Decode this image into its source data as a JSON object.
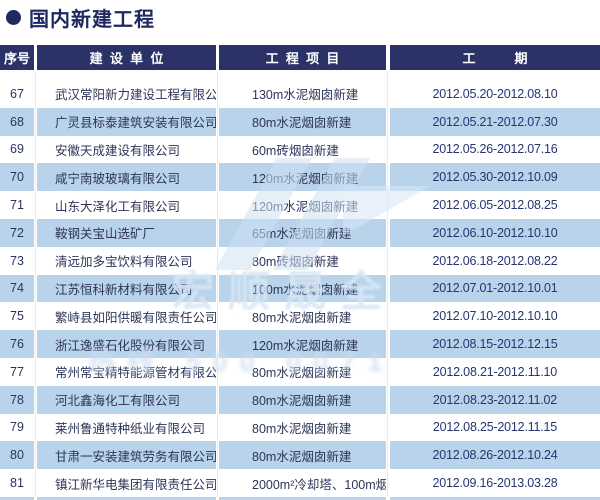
{
  "page": {
    "title": "国内新建工程"
  },
  "table": {
    "columns": [
      "序号",
      "建  设  单  位",
      "工  程  项  目",
      "工　　　期"
    ],
    "rows": [
      {
        "no": "67",
        "company": "武汉常阳新力建设工程有限公司",
        "project": "130m水泥烟囱新建",
        "period": "2012.05.20-2012.08.10"
      },
      {
        "no": "68",
        "company": "广灵县标泰建筑安装有限公司",
        "project": "80m水泥烟囱新建",
        "period": "2012.05.21-2012.07.30"
      },
      {
        "no": "69",
        "company": "安徽天成建设有限公司",
        "project": "60m砖烟囱新建",
        "period": "2012.05.26-2012.07.16"
      },
      {
        "no": "70",
        "company": "咸宁南玻玻璃有限公司",
        "project": "120m水泥烟囱新建",
        "period": "2012.05.30-2012.10.09"
      },
      {
        "no": "71",
        "company": "山东大泽化工有限公司",
        "project": "120m水泥烟囱新建",
        "period": "2012.06.05-2012.08.25"
      },
      {
        "no": "72",
        "company": "鞍钢关宝山选矿厂",
        "project": "65m水泥烟囱新建",
        "period": "2012.06.10-2012.10.10"
      },
      {
        "no": "73",
        "company": "清远加多宝饮料有限公司",
        "project": "80m砖烟囱新建",
        "period": "2012.06.18-2012.08.22"
      },
      {
        "no": "74",
        "company": "江苏恒科新材料有限公司",
        "project": "100m水泥烟囱新建",
        "period": "2012.07.01-2012.10.01"
      },
      {
        "no": "75",
        "company": "繁峙县如阳供暖有限责任公司",
        "project": "80m水泥烟囱新建",
        "period": "2012.07.10-2012.10.10"
      },
      {
        "no": "76",
        "company": "浙江逸盛石化股份有限公司",
        "project": "120m水泥烟囱新建",
        "period": "2012.08.15-2012.12.15"
      },
      {
        "no": "77",
        "company": "常州常宝精特能源管材有限公司",
        "project": "80m水泥烟囱新建",
        "period": "2012.08.21-2012.11.10"
      },
      {
        "no": "78",
        "company": "河北鑫海化工有限公司",
        "project": "80m水泥烟囱新建",
        "period": "2012.08.23-2012.11.02"
      },
      {
        "no": "79",
        "company": "莱州鲁通特种纸业有限公司",
        "project": "80m水泥烟囱新建",
        "period": "2012.08.25-2012.11.15"
      },
      {
        "no": "80",
        "company": "甘肃一安装建筑劳务有限公司",
        "project": "80m水泥烟囱新建",
        "period": "2012.08.26-2012.10.24"
      },
      {
        "no": "81",
        "company": "镇江新华电集团有限责任公司",
        "project": "2000m²冷却塔、100m烟囱新建",
        "period": "2012.09.16-2013.03.28"
      }
    ]
  },
  "watermark": {
    "brand_text": "宏顺晟全",
    "hotline_text": "热线 500 0071"
  },
  "colors": {
    "header_navy": "#2b3268",
    "title_navy": "#1f2960",
    "row_blue": "#b8d3ea"
  }
}
